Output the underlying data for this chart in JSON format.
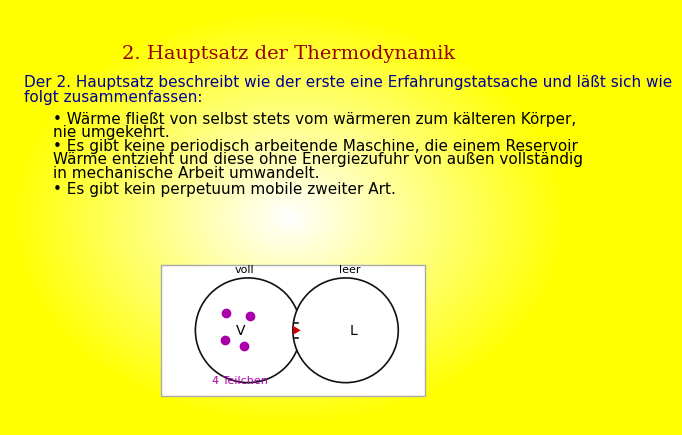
{
  "title": "2. Hauptsatz der Thermodynamik",
  "title_color": "#990000",
  "title_fontsize": 14,
  "bg_color_center": "#ffffff",
  "bg_color_edge": "#ffff00",
  "body_text_color": "#000099",
  "body_text_line1": "Der 2. Hauptsatz beschreibt wie der erste eine Erfahrungstatsache und läßt sich wie",
  "body_text_line2": "folgt zusammenfassen:",
  "bullet1_line1": "• Wärme fließt von selbst stets vom wärmeren zum kälteren Körper,",
  "bullet1_line2": "nie umgekehrt.",
  "bullet2_line1": "• Es gibt keine periodisch arbeitende Maschine, die einem Reservoir",
  "bullet2_line2": "Wärme entzieht und diese ohne Energiezufuhr von außen vollständig",
  "bullet2_line3": "in mechanische Arbeit umwandelt.",
  "bullet3": "• Es gibt kein perpetuum mobile zweiter Art.",
  "diagram_label_voll": "voll",
  "diagram_label_leer": "leer",
  "diagram_label_V": "V",
  "diagram_label_L": "L",
  "diagram_label_teilchen": "4 Teilchen",
  "diagram_teilchen_color": "#aa00aa",
  "diagram_arrow_color": "#cc0000",
  "diagram_border_color": "#111111",
  "diagram_bg": "#ffffff",
  "text_fontsize": 11,
  "bullet_fontsize": 11
}
